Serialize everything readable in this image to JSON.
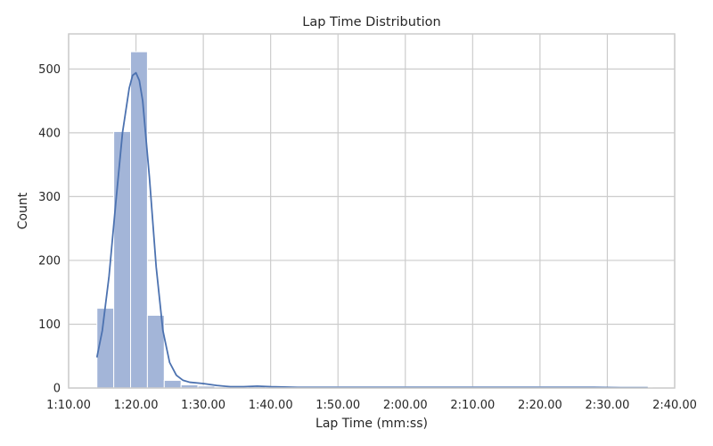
{
  "chart_data": {
    "type": "bar",
    "subtype": "histogram",
    "title": "Lap Time Distribution",
    "xlabel": "Lap Time (mm:ss)",
    "ylabel": "Count",
    "x_unit": "seconds",
    "xlim": [
      70,
      160
    ],
    "ylim": [
      0,
      555
    ],
    "x_ticks": [
      70,
      80,
      90,
      100,
      110,
      120,
      130,
      140,
      150,
      160
    ],
    "x_tick_labels": [
      "1:10.00",
      "1:20.00",
      "1:30.00",
      "1:40.00",
      "1:50.00",
      "2:00.00",
      "2:10.00",
      "2:20.00",
      "2:30.00",
      "2:40.00"
    ],
    "y_ticks": [
      0,
      100,
      200,
      300,
      400,
      500
    ],
    "y_tick_labels": [
      "0",
      "100",
      "200",
      "300",
      "400",
      "500"
    ],
    "grid": true,
    "bins": [
      {
        "start": 74.2,
        "end": 76.7,
        "count": 125
      },
      {
        "start": 76.7,
        "end": 79.2,
        "count": 402
      },
      {
        "start": 79.2,
        "end": 81.7,
        "count": 527
      },
      {
        "start": 81.7,
        "end": 84.2,
        "count": 114
      },
      {
        "start": 84.2,
        "end": 86.7,
        "count": 12
      },
      {
        "start": 86.7,
        "end": 89.2,
        "count": 5
      },
      {
        "start": 89.2,
        "end": 91.7,
        "count": 3
      },
      {
        "start": 91.7,
        "end": 94.2,
        "count": 1
      },
      {
        "start": 94.2,
        "end": 96.7,
        "count": 1
      },
      {
        "start": 96.7,
        "end": 99.2,
        "count": 2
      },
      {
        "start": 99.2,
        "end": 101.7,
        "count": 1
      },
      {
        "start": 101.7,
        "end": 104.2,
        "count": 1
      },
      {
        "start": 104.2,
        "end": 106.7,
        "count": 1
      },
      {
        "start": 106.7,
        "end": 109.2,
        "count": 1
      },
      {
        "start": 109.2,
        "end": 111.7,
        "count": 2
      },
      {
        "start": 111.7,
        "end": 114.2,
        "count": 1
      },
      {
        "start": 114.2,
        "end": 116.7,
        "count": 2
      },
      {
        "start": 116.7,
        "end": 119.2,
        "count": 1
      },
      {
        "start": 119.2,
        "end": 121.7,
        "count": 2
      },
      {
        "start": 121.7,
        "end": 124.2,
        "count": 2
      },
      {
        "start": 124.2,
        "end": 126.7,
        "count": 1
      },
      {
        "start": 126.7,
        "end": 129.2,
        "count": 1
      },
      {
        "start": 129.2,
        "end": 131.7,
        "count": 2
      },
      {
        "start": 131.7,
        "end": 134.2,
        "count": 1
      },
      {
        "start": 134.2,
        "end": 136.7,
        "count": 2
      },
      {
        "start": 136.7,
        "end": 139.2,
        "count": 1
      },
      {
        "start": 139.2,
        "end": 141.7,
        "count": 2
      },
      {
        "start": 141.7,
        "end": 144.2,
        "count": 1
      },
      {
        "start": 144.2,
        "end": 146.7,
        "count": 1
      },
      {
        "start": 146.7,
        "end": 149.2,
        "count": 2
      },
      {
        "start": 149.2,
        "end": 151.7,
        "count": 1
      },
      {
        "start": 151.7,
        "end": 154.2,
        "count": 1
      },
      {
        "start": 154.2,
        "end": 156.7,
        "count": 1
      }
    ],
    "kde": {
      "x": [
        74.2,
        75,
        76,
        77,
        78,
        79,
        79.5,
        80,
        80.5,
        81,
        82,
        83,
        84,
        85,
        86,
        87,
        88,
        89,
        90,
        92,
        94,
        96,
        98,
        100,
        104,
        108,
        112,
        116,
        120,
        124,
        128,
        132,
        136,
        140,
        144,
        148,
        152,
        156
      ],
      "y": [
        48,
        90,
        175,
        290,
        400,
        470,
        490,
        494,
        482,
        450,
        330,
        190,
        90,
        40,
        20,
        12,
        9,
        8,
        7,
        4,
        2,
        2,
        3,
        2,
        1,
        1,
        1,
        1,
        1,
        1,
        1,
        1,
        1,
        1,
        1,
        1,
        0.5,
        0.5
      ]
    },
    "colors": {
      "bar_fill": "#a3b5d8",
      "bar_edge": "#ffffff",
      "kde_line": "#4c72b0",
      "grid": "#cccccc",
      "frame": "#cccccc",
      "background": "#ffffff",
      "text": "#262626"
    }
  }
}
